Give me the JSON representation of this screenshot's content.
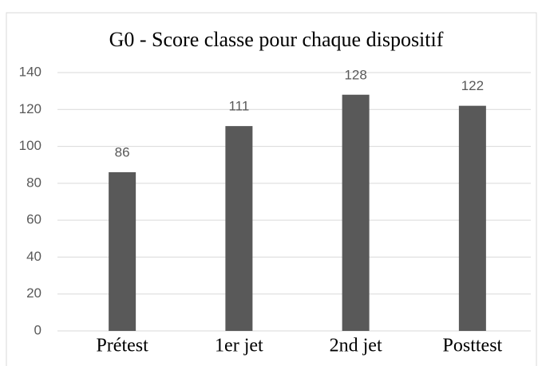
{
  "chart_data": {
    "type": "bar",
    "title": "G0 - Score classe pour chaque dispositif",
    "categories": [
      "Prétest",
      "1er jet",
      "2nd jet",
      "Posttest"
    ],
    "values": [
      86,
      111,
      128,
      122
    ],
    "color": "#595959",
    "ylim": [
      0,
      140
    ],
    "yticks": [
      0,
      20,
      40,
      60,
      80,
      100,
      120,
      140
    ],
    "grid": true
  }
}
